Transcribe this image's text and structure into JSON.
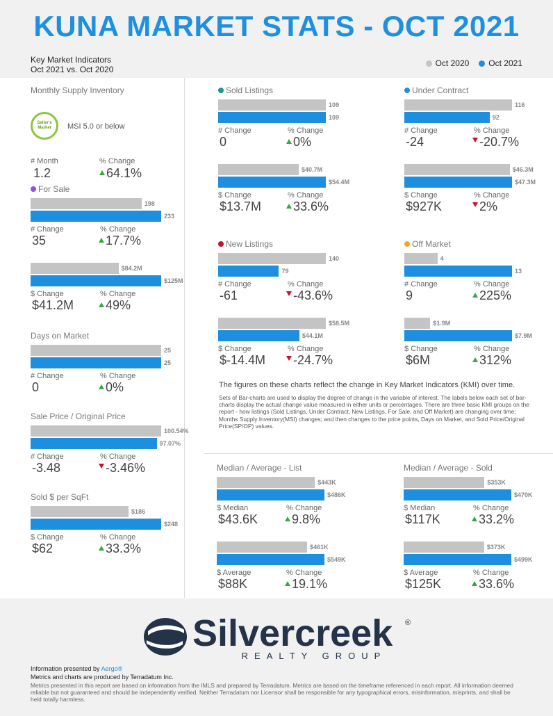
{
  "header": {
    "title": "KUNA MARKET STATS - OCT 2021",
    "subtitle_line1": "Key Market Indicators",
    "subtitle_line2": "Oct 2021 vs. Oct 2020",
    "legend": [
      {
        "label": "Oct 2020",
        "color": "#c4c4c4"
      },
      {
        "label": "Oct 2021",
        "color": "#1e8fdf"
      }
    ]
  },
  "colors": {
    "prior": "#c4c4c4",
    "current": "#1e8fdf",
    "up": "#35a83f",
    "down": "#c8102e"
  },
  "msi": {
    "title": "Monthly Supply Inventory",
    "badge_line1": "Seller's",
    "badge_line2": "Market",
    "badge_text": "MSI 5.0 or below",
    "num_label": "# Month",
    "num_value": "1.2",
    "pct_label": "% Change",
    "pct_value": "64.1%",
    "direction": "up"
  },
  "chart_data": [
    {
      "type": "bar",
      "id": "for-sale",
      "title": "For Sale",
      "title_dot": "#9b4fd6",
      "unit": "count",
      "series": [
        {
          "name": "Oct 2020",
          "values": [
            198
          ],
          "labels": [
            "198"
          ]
        },
        {
          "name": "Oct 2021",
          "values": [
            233
          ],
          "labels": [
            "233"
          ]
        }
      ],
      "num_label": "# Change",
      "num_value": "35",
      "pct_label": "% Change",
      "pct_value": "17.7%",
      "direction": "up"
    },
    {
      "type": "bar",
      "id": "for-sale-dollar",
      "title": "",
      "unit": "$M",
      "series": [
        {
          "name": "Oct 2020",
          "values": [
            84.2
          ],
          "labels": [
            "$84.2M"
          ]
        },
        {
          "name": "Oct 2021",
          "values": [
            125
          ],
          "labels": [
            "$125M"
          ]
        }
      ],
      "num_label": "$ Change",
      "num_value": "$41.2M",
      "pct_label": "% Change",
      "pct_value": "49%",
      "direction": "up"
    },
    {
      "type": "bar",
      "id": "days-on-market",
      "title": "Days on Market",
      "unit": "days",
      "series": [
        {
          "name": "Oct 2020",
          "values": [
            25
          ],
          "labels": [
            "25"
          ]
        },
        {
          "name": "Oct 2021",
          "values": [
            25
          ],
          "labels": [
            "25"
          ]
        }
      ],
      "num_label": "# Change",
      "num_value": "0",
      "pct_label": "% Change",
      "pct_value": "0%",
      "direction": "up"
    },
    {
      "type": "bar",
      "id": "sale-price-orig",
      "title": "Sale Price / Original Price",
      "unit": "%",
      "series": [
        {
          "name": "Oct 2020",
          "values": [
            100.54
          ],
          "labels": [
            "100.54%"
          ]
        },
        {
          "name": "Oct 2021",
          "values": [
            97.07
          ],
          "labels": [
            "97.07%"
          ]
        }
      ],
      "num_label": "# Change",
      "num_value": "-3.48",
      "pct_label": "% Change",
      "pct_value": "-3.46%",
      "direction": "down"
    },
    {
      "type": "bar",
      "id": "sold-per-sqft",
      "title": "Sold $ per SqFt",
      "unit": "$",
      "series": [
        {
          "name": "Oct 2020",
          "values": [
            186
          ],
          "labels": [
            "$186"
          ]
        },
        {
          "name": "Oct 2021",
          "values": [
            248
          ],
          "labels": [
            "$248"
          ]
        }
      ],
      "num_label": "$ Change",
      "num_value": "$62",
      "pct_label": "% Change",
      "pct_value": "33.3%",
      "direction": "up"
    },
    {
      "type": "bar",
      "id": "sold-listings",
      "title": "Sold Listings",
      "title_dot": "#1a9a8a",
      "unit": "count",
      "series": [
        {
          "name": "Oct 2020",
          "values": [
            109
          ],
          "labels": [
            "109"
          ]
        },
        {
          "name": "Oct 2021",
          "values": [
            109
          ],
          "labels": [
            "109"
          ]
        }
      ],
      "num_label": "# Change",
      "num_value": "0",
      "pct_label": "% Change",
      "pct_value": "0%",
      "direction": "up"
    },
    {
      "type": "bar",
      "id": "sold-listings-dollar",
      "title": "",
      "unit": "$M",
      "series": [
        {
          "name": "Oct 2020",
          "values": [
            40.7
          ],
          "labels": [
            "$40.7M"
          ]
        },
        {
          "name": "Oct 2021",
          "values": [
            54.4
          ],
          "labels": [
            "$54.4M"
          ]
        }
      ],
      "num_label": "$ Change",
      "num_value": "$13.7M",
      "pct_label": "% Change",
      "pct_value": "33.6%",
      "direction": "up"
    },
    {
      "type": "bar",
      "id": "under-contract",
      "title": "Under Contract",
      "title_dot": "#1e8fdf",
      "unit": "count",
      "series": [
        {
          "name": "Oct 2020",
          "values": [
            116
          ],
          "labels": [
            "116"
          ]
        },
        {
          "name": "Oct 2021",
          "values": [
            92
          ],
          "labels": [
            "92"
          ]
        }
      ],
      "num_label": "# Change",
      "num_value": "-24",
      "pct_label": "% Change",
      "pct_value": "-20.7%",
      "direction": "down"
    },
    {
      "type": "bar",
      "id": "under-contract-dollar",
      "title": "",
      "unit": "$M",
      "series": [
        {
          "name": "Oct 2020",
          "values": [
            46.3
          ],
          "labels": [
            "$46.3M"
          ]
        },
        {
          "name": "Oct 2021",
          "values": [
            47.3
          ],
          "labels": [
            "$47.3M"
          ]
        }
      ],
      "num_label": "$ Change",
      "num_value": "$927K",
      "pct_label": "% Change",
      "pct_value": "2%",
      "direction": "down"
    },
    {
      "type": "bar",
      "id": "new-listings",
      "title": "New Listings",
      "title_dot": "#c8102e",
      "unit": "count",
      "series": [
        {
          "name": "Oct 2020",
          "values": [
            140
          ],
          "labels": [
            "140"
          ]
        },
        {
          "name": "Oct 2021",
          "values": [
            79
          ],
          "labels": [
            "79"
          ]
        }
      ],
      "num_label": "# Change",
      "num_value": "-61",
      "pct_label": "% Change",
      "pct_value": "-43.6%",
      "direction": "down"
    },
    {
      "type": "bar",
      "id": "new-listings-dollar",
      "title": "",
      "unit": "$M",
      "series": [
        {
          "name": "Oct 2020",
          "values": [
            58.5
          ],
          "labels": [
            "$58.5M"
          ]
        },
        {
          "name": "Oct 2021",
          "values": [
            44.1
          ],
          "labels": [
            "$44.1M"
          ]
        }
      ],
      "num_label": "$ Change",
      "num_value": "$-14.4M",
      "pct_label": "% Change",
      "pct_value": "-24.7%",
      "direction": "down"
    },
    {
      "type": "bar",
      "id": "off-market",
      "title": "Off Market",
      "title_dot": "#f5a623",
      "unit": "count",
      "series": [
        {
          "name": "Oct 2020",
          "values": [
            4
          ],
          "labels": [
            "4"
          ]
        },
        {
          "name": "Oct 2021",
          "values": [
            13
          ],
          "labels": [
            "13"
          ]
        }
      ],
      "num_label": "# Change",
      "num_value": "9",
      "pct_label": "% Change",
      "pct_value": "225%",
      "direction": "up"
    },
    {
      "type": "bar",
      "id": "off-market-dollar",
      "title": "",
      "unit": "$M",
      "series": [
        {
          "name": "Oct 2020",
          "values": [
            1.9
          ],
          "labels": [
            "$1.9M"
          ]
        },
        {
          "name": "Oct 2021",
          "values": [
            7.9
          ],
          "labels": [
            "$7.9M"
          ]
        }
      ],
      "num_label": "$ Change",
      "num_value": "$6M",
      "pct_label": "% Change",
      "pct_value": "312%",
      "direction": "up"
    },
    {
      "type": "bar",
      "id": "median-list",
      "title": "Median / Average - List",
      "unit": "$K",
      "series": [
        {
          "name": "Oct 2020",
          "values": [
            443
          ],
          "labels": [
            "$443K"
          ]
        },
        {
          "name": "Oct 2021",
          "values": [
            486
          ],
          "labels": [
            "$486K"
          ]
        }
      ],
      "num_label": "$ Median",
      "num_value": "$43.6K",
      "pct_label": "% Change",
      "pct_value": "9.8%",
      "direction": "up"
    },
    {
      "type": "bar",
      "id": "average-list",
      "title": "",
      "unit": "$K",
      "series": [
        {
          "name": "Oct 2020",
          "values": [
            461
          ],
          "labels": [
            "$461K"
          ]
        },
        {
          "name": "Oct 2021",
          "values": [
            549
          ],
          "labels": [
            "$549K"
          ]
        }
      ],
      "num_label": "$ Average",
      "num_value": "$88K",
      "pct_label": "% Change",
      "pct_value": "19.1%",
      "direction": "up"
    },
    {
      "type": "bar",
      "id": "median-sold",
      "title": "Median / Average - Sold",
      "unit": "$K",
      "series": [
        {
          "name": "Oct 2020",
          "values": [
            353
          ],
          "labels": [
            "$353K"
          ]
        },
        {
          "name": "Oct 2021",
          "values": [
            470
          ],
          "labels": [
            "$470K"
          ]
        }
      ],
      "num_label": "$ Median",
      "num_value": "$117K",
      "pct_label": "% Change",
      "pct_value": "33.2%",
      "direction": "up"
    },
    {
      "type": "bar",
      "id": "average-sold",
      "title": "",
      "unit": "$K",
      "series": [
        {
          "name": "Oct 2020",
          "values": [
            373
          ],
          "labels": [
            "$373K"
          ]
        },
        {
          "name": "Oct 2021",
          "values": [
            499
          ],
          "labels": [
            "$499K"
          ]
        }
      ],
      "num_label": "$ Average",
      "num_value": "$125K",
      "pct_label": "% Change",
      "pct_value": "33.6%",
      "direction": "up"
    }
  ],
  "description": {
    "bold": "The figures on these charts reflect the change in Key Market Indicators (KMI) over time.",
    "body": "Sets of Bar-charts are used to display the degree of change in the variable of interest. The labels below each set of bar-charts display the actual change value measured in either units or percentages. There are three basic KMI groups on the report - how listings (Sold Listings, Under Contract, New Listings, For Sale, and Off Market) are changing over time; Months Supply Inventory(MSI) changes; and then changes to the price points, Days on Market, and Sold Price/Original Price(SP/OP) values."
  },
  "footer": {
    "logo_word": "Silvercreek",
    "logo_reg": "®",
    "logo_sub": "REALTY GROUP",
    "presented_prefix": "Information presented by ",
    "presented_link": "Aergo®",
    "produced": "Metrics and charts are produced by Terradatum Inc.",
    "disclaimer": "Metrics presented in this report are based on information from the IMLS and prepared by Terradatum. Metrics are based on the timeframe referenced in each report. All information deemed reliable but not guaranteed and should be independently verified. Neither Terradatum nor Licensor shall be responsible for any typographical errors, misinformation, misprints, and shall be held totally harmless."
  }
}
